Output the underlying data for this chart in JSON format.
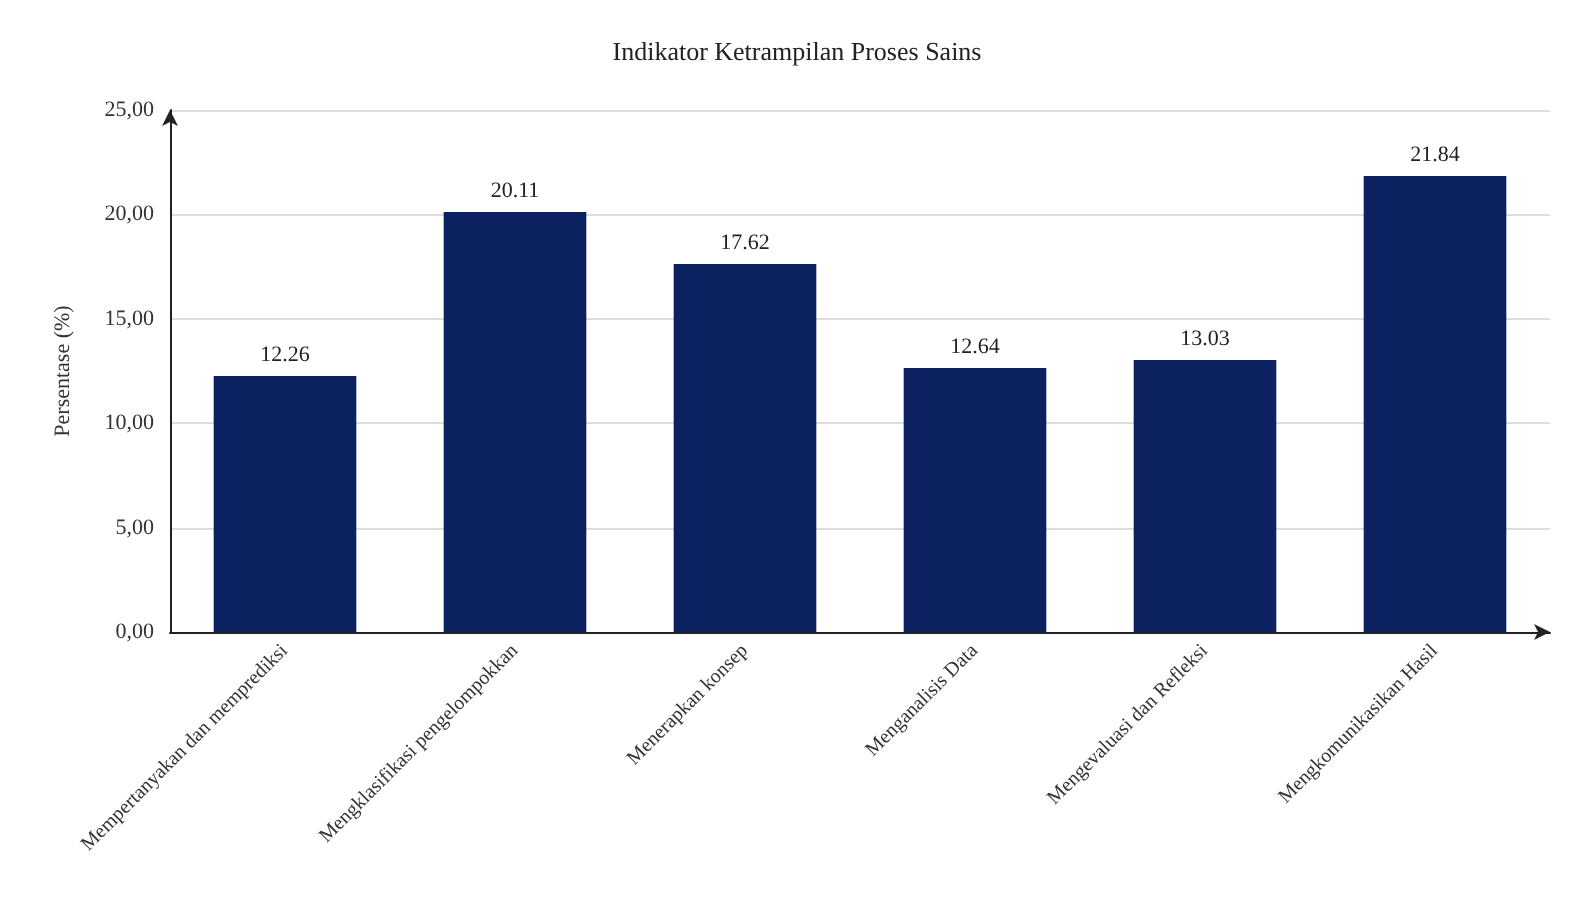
{
  "chart_data": {
    "type": "bar",
    "title": "Indikator Ketrampilan Proses Sains",
    "ylabel": "Persentase (%)",
    "categories": [
      "Mempertanyakan dan memprediksi",
      "Mengklasifikasi pengelompokkan",
      "Menerapkan konsep",
      "Menganalisis Data",
      "Mengevaluasi dan Refleksi",
      "Mengkomunikasikan Hasil"
    ],
    "values": [
      12.26,
      20.11,
      17.62,
      12.64,
      13.03,
      21.84
    ],
    "color": "#0b2160",
    "ylim": [
      0,
      25
    ],
    "yticks": [
      {
        "value": 0,
        "label": "0,00"
      },
      {
        "value": 5,
        "label": "5,00"
      },
      {
        "value": 10,
        "label": "10,00"
      },
      {
        "value": 15,
        "label": "15,00"
      },
      {
        "value": 20,
        "label": "20,00"
      },
      {
        "value": 25,
        "label": "25,00"
      }
    ],
    "grid": "y",
    "data_labels": true
  }
}
